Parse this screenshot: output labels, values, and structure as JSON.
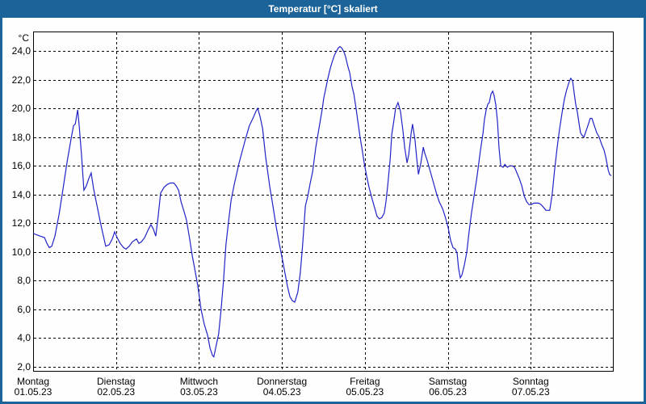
{
  "window": {
    "title": "Temperatur [°C] skaliert"
  },
  "colors": {
    "titlebar": "#1b6398",
    "window_border": "#1b6398",
    "plot_background": "#fdfefd",
    "plot_border": "#000000",
    "grid": "#000000",
    "text": "#000000",
    "line": "#2323c8"
  },
  "chart_data": {
    "type": "line",
    "title": "Temperatur [°C] skaliert",
    "y_unit": "°C",
    "ylim": [
      2,
      24
    ],
    "ytick_step": 2,
    "ytick_labels_top_to_bottom": [
      "24,0",
      "22,0",
      "20,0",
      "18,0",
      "16,0",
      "14,0",
      "12,0",
      "10,0",
      "8,0",
      "6,0",
      "4,0",
      "2,0"
    ],
    "grid": "dashed",
    "legend": "none",
    "x_unit": "hours since Montag 00:00",
    "xlim": [
      0,
      168
    ],
    "x_categories": [
      {
        "day": "Montag",
        "date": "01.05.23"
      },
      {
        "day": "Dienstag",
        "date": "02.05.23"
      },
      {
        "day": "Mittwoch",
        "date": "03.05.23"
      },
      {
        "day": "Donnerstag",
        "date": "04.05.23"
      },
      {
        "day": "Freitag",
        "date": "05.05.23"
      },
      {
        "day": "Samstag",
        "date": "06.05.23"
      },
      {
        "day": "Sonntag",
        "date": "07.05.23"
      }
    ],
    "series": [
      {
        "name": "Temperatur [°C]",
        "color": "#2323c8",
        "points": [
          [
            0,
            11.3
          ],
          [
            0.9,
            11.2
          ],
          [
            2.1,
            11.1
          ],
          [
            3.3,
            11.0
          ],
          [
            4.0,
            10.6
          ],
          [
            4.7,
            10.3
          ],
          [
            5.4,
            10.4
          ],
          [
            6.3,
            11.1
          ],
          [
            7.5,
            12.6
          ],
          [
            8.6,
            14.3
          ],
          [
            9.8,
            16.2
          ],
          [
            11.0,
            17.9
          ],
          [
            11.7,
            18.8
          ],
          [
            12.2,
            18.9
          ],
          [
            12.9,
            19.9
          ],
          [
            13.3,
            18.9
          ],
          [
            14.0,
            16.8
          ],
          [
            14.7,
            14.3
          ],
          [
            15.4,
            14.6
          ],
          [
            16.1,
            15.1
          ],
          [
            16.8,
            15.5
          ],
          [
            17.5,
            14.4
          ],
          [
            18.5,
            13.2
          ],
          [
            19.6,
            11.9
          ],
          [
            21.0,
            10.4
          ],
          [
            22.0,
            10.5
          ],
          [
            22.9,
            10.9
          ],
          [
            23.6,
            11.4
          ],
          [
            24.3,
            11.0
          ],
          [
            25.2,
            10.6
          ],
          [
            26.2,
            10.3
          ],
          [
            26.9,
            10.2
          ],
          [
            27.8,
            10.4
          ],
          [
            28.7,
            10.7
          ],
          [
            29.9,
            10.9
          ],
          [
            30.6,
            10.6
          ],
          [
            31.3,
            10.7
          ],
          [
            32.3,
            11.0
          ],
          [
            33.2,
            11.5
          ],
          [
            34.1,
            11.9
          ],
          [
            34.8,
            11.6
          ],
          [
            35.5,
            11.1
          ],
          [
            36.2,
            12.5
          ],
          [
            36.9,
            14.1
          ],
          [
            37.9,
            14.5
          ],
          [
            38.8,
            14.7
          ],
          [
            39.7,
            14.8
          ],
          [
            40.7,
            14.8
          ],
          [
            41.4,
            14.6
          ],
          [
            42.1,
            14.3
          ],
          [
            42.8,
            13.5
          ],
          [
            43.7,
            12.8
          ],
          [
            44.4,
            12.2
          ],
          [
            45.3,
            10.9
          ],
          [
            46.0,
            9.8
          ],
          [
            46.7,
            8.9
          ],
          [
            47.7,
            7.6
          ],
          [
            48.6,
            6.0
          ],
          [
            49.5,
            5.0
          ],
          [
            50.5,
            4.2
          ],
          [
            51.2,
            3.3
          ],
          [
            51.9,
            2.8
          ],
          [
            52.3,
            2.7
          ],
          [
            53.0,
            3.5
          ],
          [
            53.7,
            4.3
          ],
          [
            54.4,
            6.0
          ],
          [
            55.1,
            8.0
          ],
          [
            55.8,
            10.5
          ],
          [
            56.6,
            12.2
          ],
          [
            57.3,
            13.6
          ],
          [
            58.2,
            14.7
          ],
          [
            59.6,
            16.2
          ],
          [
            60.5,
            17.0
          ],
          [
            61.5,
            17.9
          ],
          [
            62.6,
            18.8
          ],
          [
            63.6,
            19.3
          ],
          [
            64.5,
            19.8
          ],
          [
            65.0,
            20.0
          ],
          [
            65.7,
            19.4
          ],
          [
            66.4,
            18.6
          ],
          [
            67.3,
            16.6
          ],
          [
            68.5,
            14.5
          ],
          [
            69.4,
            13.2
          ],
          [
            70.3,
            11.8
          ],
          [
            71.3,
            10.5
          ],
          [
            72.2,
            9.4
          ],
          [
            72.9,
            8.5
          ],
          [
            73.6,
            7.6
          ],
          [
            74.3,
            6.9
          ],
          [
            75.0,
            6.6
          ],
          [
            75.7,
            6.5
          ],
          [
            76.6,
            7.2
          ],
          [
            77.3,
            8.5
          ],
          [
            78.0,
            10.5
          ],
          [
            78.8,
            13.2
          ],
          [
            79.5,
            13.9
          ],
          [
            80.2,
            14.8
          ],
          [
            80.9,
            15.6
          ],
          [
            81.8,
            17.3
          ],
          [
            82.5,
            18.3
          ],
          [
            83.0,
            19.0
          ],
          [
            83.7,
            20.0
          ],
          [
            84.1,
            20.7
          ],
          [
            84.8,
            21.5
          ],
          [
            85.3,
            22.1
          ],
          [
            86.0,
            22.8
          ],
          [
            86.5,
            23.2
          ],
          [
            87.2,
            23.7
          ],
          [
            87.6,
            23.9
          ],
          [
            88.3,
            24.2
          ],
          [
            88.8,
            24.3
          ],
          [
            89.3,
            24.2
          ],
          [
            90.0,
            23.9
          ],
          [
            90.4,
            23.6
          ],
          [
            91.1,
            22.9
          ],
          [
            91.6,
            22.5
          ],
          [
            92.3,
            21.5
          ],
          [
            92.8,
            21.0
          ],
          [
            93.5,
            19.9
          ],
          [
            93.9,
            19.2
          ],
          [
            94.6,
            18.0
          ],
          [
            95.1,
            17.3
          ],
          [
            95.8,
            16.2
          ],
          [
            96.5,
            15.3
          ],
          [
            97.2,
            14.5
          ],
          [
            98.1,
            13.7
          ],
          [
            98.8,
            13.1
          ],
          [
            99.5,
            12.5
          ],
          [
            100.2,
            12.3
          ],
          [
            100.9,
            12.4
          ],
          [
            101.6,
            12.7
          ],
          [
            102.1,
            13.5
          ],
          [
            102.6,
            14.6
          ],
          [
            103.3,
            16.4
          ],
          [
            103.8,
            18.2
          ],
          [
            104.5,
            19.3
          ],
          [
            104.9,
            20.0
          ],
          [
            105.6,
            20.4
          ],
          [
            106.3,
            19.8
          ],
          [
            107.0,
            18.5
          ],
          [
            107.5,
            17.3
          ],
          [
            108.2,
            16.2
          ],
          [
            108.7,
            16.8
          ],
          [
            109.4,
            18.3
          ],
          [
            109.8,
            18.9
          ],
          [
            110.5,
            17.8
          ],
          [
            111.0,
            16.5
          ],
          [
            111.5,
            15.4
          ],
          [
            112.2,
            16.2
          ],
          [
            112.9,
            17.3
          ],
          [
            113.3,
            16.9
          ],
          [
            114.0,
            16.4
          ],
          [
            114.7,
            15.8
          ],
          [
            115.4,
            15.2
          ],
          [
            116.1,
            14.6
          ],
          [
            116.8,
            14.0
          ],
          [
            117.5,
            13.5
          ],
          [
            118.5,
            13.0
          ],
          [
            119.2,
            12.5
          ],
          [
            120.1,
            11.7
          ],
          [
            120.8,
            10.8
          ],
          [
            121.5,
            10.3
          ],
          [
            122.2,
            10.2
          ],
          [
            122.7,
            9.9
          ],
          [
            123.1,
            8.9
          ],
          [
            123.6,
            8.2
          ],
          [
            124.1,
            8.4
          ],
          [
            124.8,
            9.1
          ],
          [
            125.5,
            10.0
          ],
          [
            126.2,
            11.5
          ],
          [
            126.9,
            12.8
          ],
          [
            127.6,
            13.9
          ],
          [
            128.3,
            15.0
          ],
          [
            128.7,
            15.7
          ],
          [
            129.4,
            17.0
          ],
          [
            130.2,
            18.3
          ],
          [
            130.6,
            19.2
          ],
          [
            131.1,
            19.9
          ],
          [
            131.6,
            20.3
          ],
          [
            132.0,
            20.4
          ],
          [
            132.5,
            21.0
          ],
          [
            133.0,
            21.2
          ],
          [
            133.4,
            20.9
          ],
          [
            133.9,
            20.2
          ],
          [
            134.4,
            19.0
          ],
          [
            134.8,
            17.3
          ],
          [
            135.3,
            16.0
          ],
          [
            136.0,
            15.9
          ],
          [
            136.5,
            16.1
          ],
          [
            137.2,
            15.9
          ],
          [
            137.9,
            16.0
          ],
          [
            138.6,
            16.0
          ],
          [
            139.3,
            15.9
          ],
          [
            140.0,
            15.5
          ],
          [
            140.7,
            15.1
          ],
          [
            141.4,
            14.6
          ],
          [
            142.1,
            13.9
          ],
          [
            142.8,
            13.5
          ],
          [
            143.5,
            13.3
          ],
          [
            144.2,
            13.3
          ],
          [
            144.9,
            13.4
          ],
          [
            145.6,
            13.4
          ],
          [
            146.3,
            13.4
          ],
          [
            147.0,
            13.3
          ],
          [
            147.7,
            13.1
          ],
          [
            148.4,
            12.9
          ],
          [
            149.1,
            12.9
          ],
          [
            149.5,
            12.9
          ],
          [
            150.2,
            14.0
          ],
          [
            150.9,
            15.7
          ],
          [
            151.6,
            17.2
          ],
          [
            152.3,
            18.5
          ],
          [
            153.0,
            19.6
          ],
          [
            153.7,
            20.6
          ],
          [
            154.4,
            21.3
          ],
          [
            155.2,
            21.9
          ],
          [
            155.6,
            22.1
          ],
          [
            156.1,
            21.9
          ],
          [
            156.6,
            21.0
          ],
          [
            157.0,
            20.3
          ],
          [
            157.5,
            19.7
          ],
          [
            158.0,
            18.9
          ],
          [
            158.4,
            18.3
          ],
          [
            158.9,
            18.1
          ],
          [
            159.4,
            18.0
          ],
          [
            160.1,
            18.5
          ],
          [
            160.8,
            19.0
          ],
          [
            161.2,
            19.3
          ],
          [
            161.7,
            19.3
          ],
          [
            162.4,
            18.8
          ],
          [
            163.1,
            18.3
          ],
          [
            163.8,
            18.0
          ],
          [
            164.5,
            17.5
          ],
          [
            165.2,
            17.1
          ],
          [
            165.7,
            16.6
          ],
          [
            166.4,
            15.7
          ],
          [
            166.8,
            15.4
          ],
          [
            167.3,
            15.3
          ]
        ]
      }
    ]
  }
}
